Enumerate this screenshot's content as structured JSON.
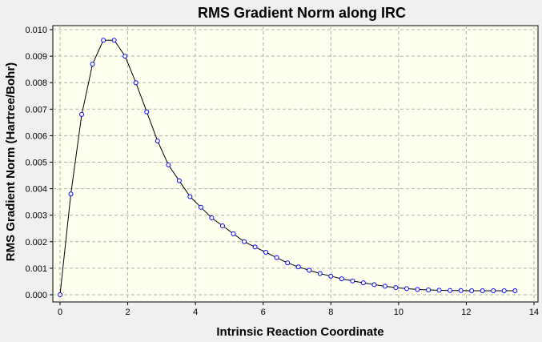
{
  "chart_data": {
    "type": "line",
    "title": "RMS Gradient Norm along IRC",
    "xlabel": "Intrinsic Reaction Coordinate",
    "ylabel": "RMS Gradient Norm (Hartree/Bohr)",
    "xlim": [
      0,
      14
    ],
    "ylim": [
      0,
      0.01
    ],
    "x_ticks": [
      "0",
      "2",
      "4",
      "6",
      "8",
      "10",
      "12",
      "14"
    ],
    "y_ticks": [
      "0.000",
      "0.001",
      "0.002",
      "0.003",
      "0.004",
      "0.005",
      "0.006",
      "0.007",
      "0.008",
      "0.009",
      "0.010"
    ],
    "grid": true,
    "background_color": "#ffffef",
    "line_color": "#000000",
    "marker_color": "#0000ff",
    "series": [
      {
        "x": [
          0.0,
          0.32,
          0.64,
          0.96,
          1.28,
          1.6,
          1.92,
          2.24,
          2.56,
          2.88,
          3.2,
          3.52,
          3.84,
          4.16,
          4.48,
          4.8,
          5.12,
          5.44,
          5.76,
          6.08,
          6.4,
          6.72,
          7.04,
          7.36,
          7.68,
          8.0,
          8.32,
          8.64,
          8.96,
          9.28,
          9.6,
          9.92,
          10.24,
          10.56,
          10.88,
          11.2,
          11.52,
          11.84,
          12.16,
          12.48,
          12.8,
          13.12,
          13.44
        ],
        "y": [
          0.0,
          0.0038,
          0.0068,
          0.0087,
          0.0096,
          0.0096,
          0.009,
          0.008,
          0.0069,
          0.0058,
          0.0049,
          0.0043,
          0.0037,
          0.0033,
          0.0029,
          0.0026,
          0.0023,
          0.002,
          0.0018,
          0.0016,
          0.0014,
          0.0012,
          0.00105,
          0.00092,
          0.0008,
          0.0007,
          0.0006,
          0.00052,
          0.00045,
          0.00038,
          0.00032,
          0.00027,
          0.00023,
          0.0002,
          0.00018,
          0.00017,
          0.00016,
          0.00016,
          0.00015,
          0.00015,
          0.00015,
          0.00015,
          0.00015
        ]
      }
    ]
  }
}
